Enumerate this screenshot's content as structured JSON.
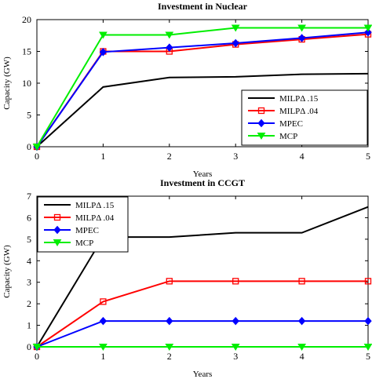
{
  "chart_data": [
    {
      "type": "line",
      "title": "Investment in Nuclear",
      "xlabel": "Years",
      "ylabel": "Capacity (GW)",
      "xlim": [
        0,
        5
      ],
      "ylim": [
        0,
        20
      ],
      "x_ticks": [
        0,
        1,
        2,
        3,
        4,
        5
      ],
      "y_ticks": [
        0,
        5,
        10,
        15,
        20
      ],
      "grid": false,
      "legend_position": "lower-right",
      "x": [
        0,
        1,
        2,
        3,
        4,
        5
      ],
      "series": [
        {
          "name": "MILPΔ .15",
          "color": "#000000",
          "marker": "none",
          "values": [
            0,
            9.4,
            10.9,
            11.0,
            11.4,
            11.5
          ]
        },
        {
          "name": "MILPΔ .04",
          "color": "#ff0000",
          "marker": "square",
          "values": [
            0,
            15.0,
            15.0,
            16.1,
            16.9,
            17.7
          ]
        },
        {
          "name": "MPEC",
          "color": "#0000ff",
          "marker": "diamond",
          "values": [
            0,
            14.9,
            15.6,
            16.3,
            17.1,
            18.0
          ]
        },
        {
          "name": "MCP",
          "color": "#00ee00",
          "marker": "triangle-down",
          "values": [
            0,
            17.6,
            17.6,
            18.7,
            18.7,
            18.7
          ]
        }
      ]
    },
    {
      "type": "line",
      "title": "Investment in CCGT",
      "xlabel": "Years",
      "ylabel": "Capacity (GW)",
      "xlim": [
        0,
        5
      ],
      "ylim": [
        0,
        7
      ],
      "x_ticks": [
        0,
        1,
        2,
        3,
        4,
        5
      ],
      "y_ticks": [
        0,
        1,
        2,
        3,
        4,
        5,
        6,
        7
      ],
      "grid": false,
      "legend_position": "upper-left",
      "x": [
        0,
        1,
        2,
        3,
        4,
        5
      ],
      "series": [
        {
          "name": "MILPΔ .15",
          "color": "#000000",
          "marker": "none",
          "values": [
            0,
            5.1,
            5.1,
            5.3,
            5.3,
            6.5
          ]
        },
        {
          "name": "MILPΔ .04",
          "color": "#ff0000",
          "marker": "square",
          "values": [
            0,
            2.1,
            3.05,
            3.05,
            3.05,
            3.05
          ]
        },
        {
          "name": "MPEC",
          "color": "#0000ff",
          "marker": "diamond",
          "values": [
            0,
            1.2,
            1.2,
            1.2,
            1.2,
            1.2
          ]
        },
        {
          "name": "MCP",
          "color": "#00ee00",
          "marker": "triangle-down",
          "values": [
            0,
            0,
            0,
            0,
            0,
            0
          ]
        }
      ]
    }
  ]
}
